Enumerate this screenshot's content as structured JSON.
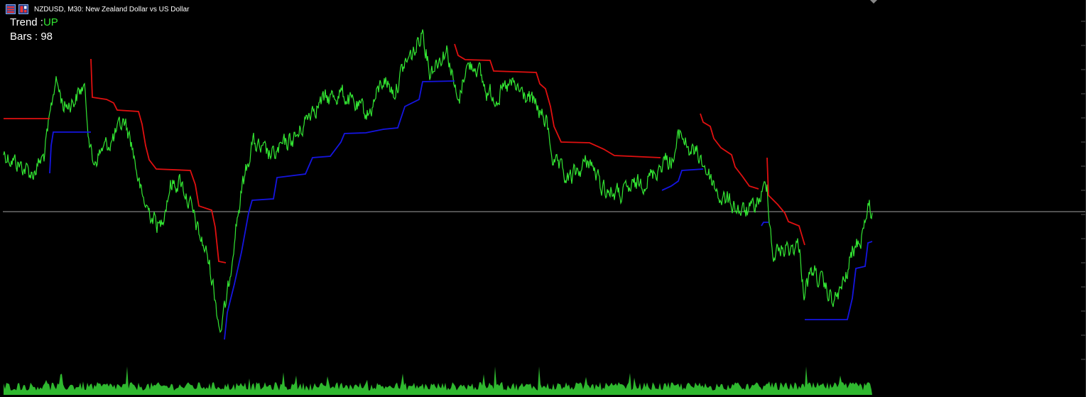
{
  "header": {
    "symbol_line": "NZDUSD, M30:  New Zealand Dollar vs US Dollar",
    "icons": [
      "chart-list-icon",
      "chart-toggle-icon"
    ]
  },
  "info_panel": {
    "trend_label": "Trend :",
    "trend_value": "UP",
    "bars_label": "Bars : 98"
  },
  "colors": {
    "background": "#000000",
    "price_line": "#33e633",
    "resistance_line": "#e01010",
    "support_line": "#1515e0",
    "volume": "#2fb82f",
    "price_level_line": "#a0a0a0",
    "text": "#ffffff"
  }
}
